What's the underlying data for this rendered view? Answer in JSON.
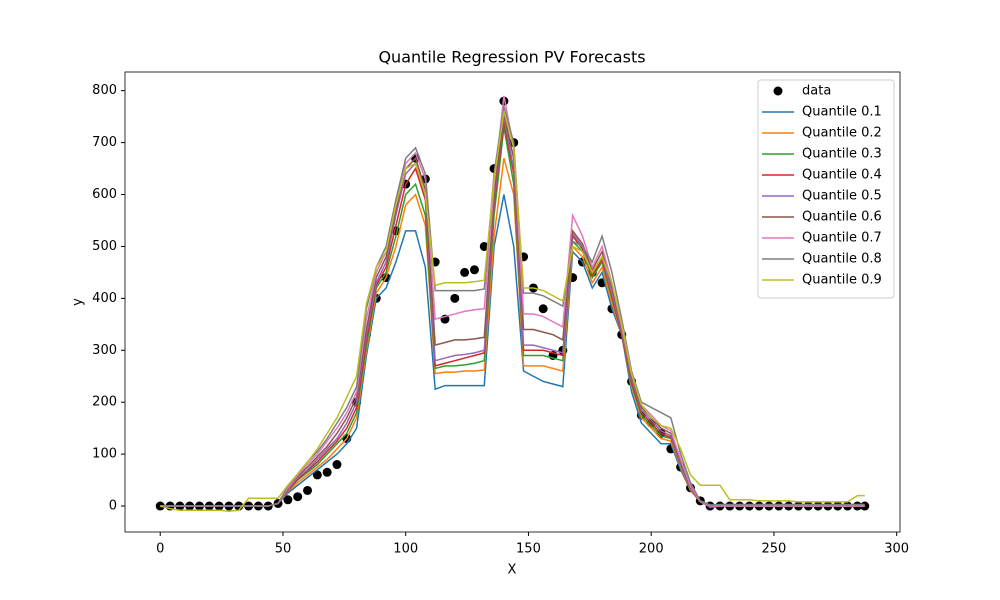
{
  "chart_data": {
    "type": "line",
    "title": "Quantile Regression PV Forecasts",
    "x_label": "X",
    "y_label": "y",
    "x": [
      0,
      4,
      8,
      12,
      16,
      20,
      24,
      28,
      32,
      36,
      40,
      44,
      48,
      52,
      56,
      60,
      64,
      68,
      72,
      76,
      80,
      84,
      88,
      92,
      96,
      100,
      104,
      108,
      112,
      116,
      120,
      124,
      128,
      132,
      136,
      140,
      144,
      148,
      152,
      156,
      160,
      164,
      168,
      172,
      176,
      180,
      184,
      188,
      192,
      196,
      200,
      204,
      208,
      212,
      216,
      220,
      224,
      228,
      232,
      236,
      240,
      244,
      248,
      252,
      256,
      260,
      264,
      268,
      272,
      276,
      280,
      284,
      287
    ],
    "xlim": [
      -14.35,
      301.35
    ],
    "xticks": [
      0,
      50,
      100,
      150,
      200,
      250,
      300
    ],
    "ylim": [
      -50,
      836
    ],
    "yticks": [
      0,
      100,
      200,
      300,
      400,
      500,
      600,
      700,
      800
    ],
    "legend": "upper right",
    "series": [
      {
        "name": "data",
        "type": "scatter",
        "color": "#000000",
        "values": [
          0,
          0,
          0,
          0,
          0,
          0,
          0,
          0,
          0,
          0,
          0,
          0,
          5,
          12,
          18,
          30,
          60,
          65,
          80,
          130,
          200,
          330,
          400,
          440,
          530,
          620,
          670,
          630,
          470,
          360,
          400,
          450,
          455,
          500,
          650,
          780,
          700,
          480,
          420,
          380,
          290,
          300,
          440,
          470,
          450,
          430,
          380,
          330,
          240,
          175,
          160,
          140,
          110,
          75,
          35,
          10,
          0,
          0,
          0,
          0,
          0,
          0,
          0,
          0,
          0,
          0,
          0,
          0,
          0,
          0,
          0,
          0,
          0
        ]
      },
      {
        "name": "Quantile 0.1",
        "type": "line",
        "color": "#1f77b4",
        "values": [
          0,
          0,
          0,
          0,
          0,
          0,
          0,
          0,
          0,
          0,
          0,
          0,
          5,
          25,
          40,
          55,
          70,
          85,
          100,
          120,
          150,
          290,
          400,
          420,
          470,
          530,
          530,
          460,
          225,
          232,
          232,
          232,
          232,
          232,
          500,
          600,
          500,
          260,
          250,
          240,
          235,
          230,
          490,
          470,
          420,
          450,
          380,
          330,
          220,
          160,
          140,
          120,
          120,
          70,
          30,
          10,
          -3,
          0,
          0,
          0,
          0,
          0,
          0,
          0,
          0,
          0,
          0,
          0,
          0,
          0,
          0,
          0,
          0
        ]
      },
      {
        "name": "Quantile 0.2",
        "type": "line",
        "color": "#ff7f0e",
        "values": [
          0,
          0,
          0,
          0,
          0,
          0,
          0,
          0,
          0,
          0,
          0,
          0,
          5,
          28,
          45,
          60,
          75,
          90,
          110,
          130,
          170,
          300,
          410,
          440,
          500,
          580,
          600,
          540,
          255,
          258,
          258,
          260,
          260,
          262,
          520,
          670,
          600,
          270,
          270,
          270,
          265,
          260,
          500,
          480,
          430,
          460,
          390,
          330,
          230,
          170,
          150,
          130,
          125,
          75,
          30,
          8,
          0,
          0,
          0,
          0,
          0,
          0,
          0,
          0,
          0,
          0,
          0,
          0,
          0,
          0,
          0,
          0,
          0
        ]
      },
      {
        "name": "Quantile 0.3",
        "type": "line",
        "color": "#2ca02c",
        "values": [
          0,
          0,
          0,
          0,
          0,
          0,
          0,
          0,
          0,
          0,
          0,
          0,
          5,
          30,
          50,
          65,
          80,
          100,
          120,
          140,
          180,
          310,
          420,
          450,
          520,
          600,
          620,
          560,
          265,
          270,
          270,
          272,
          275,
          280,
          560,
          730,
          620,
          290,
          290,
          290,
          285,
          280,
          510,
          490,
          440,
          470,
          400,
          330,
          235,
          175,
          155,
          135,
          130,
          78,
          32,
          8,
          0,
          0,
          0,
          0,
          0,
          0,
          0,
          0,
          0,
          0,
          0,
          0,
          0,
          0,
          0,
          0,
          0
        ]
      },
      {
        "name": "Quantile 0.4",
        "type": "line",
        "color": "#d62728",
        "values": [
          0,
          0,
          0,
          0,
          0,
          0,
          0,
          0,
          0,
          0,
          0,
          0,
          5,
          30,
          52,
          68,
          85,
          105,
          125,
          150,
          190,
          320,
          425,
          460,
          540,
          620,
          650,
          590,
          270,
          275,
          280,
          285,
          290,
          295,
          580,
          740,
          640,
          300,
          300,
          300,
          295,
          290,
          520,
          495,
          445,
          475,
          405,
          330,
          240,
          180,
          160,
          140,
          132,
          80,
          33,
          8,
          0,
          0,
          0,
          0,
          0,
          0,
          0,
          0,
          0,
          0,
          0,
          0,
          0,
          0,
          0,
          0,
          0
        ]
      },
      {
        "name": "Quantile 0.5",
        "type": "line",
        "color": "#9467bd",
        "values": [
          0,
          0,
          0,
          0,
          0,
          0,
          0,
          0,
          0,
          0,
          0,
          0,
          5,
          32,
          55,
          70,
          90,
          110,
          130,
          160,
          200,
          330,
          430,
          470,
          560,
          640,
          660,
          600,
          280,
          285,
          290,
          292,
          295,
          300,
          590,
          750,
          650,
          310,
          310,
          305,
          300,
          295,
          525,
          500,
          450,
          480,
          410,
          335,
          245,
          185,
          165,
          145,
          135,
          80,
          34,
          8,
          0,
          0,
          0,
          0,
          0,
          0,
          0,
          0,
          0,
          0,
          0,
          0,
          0,
          0,
          0,
          0,
          0
        ]
      },
      {
        "name": "Quantile 0.6",
        "type": "line",
        "color": "#8c564b",
        "values": [
          0,
          0,
          0,
          0,
          0,
          0,
          0,
          0,
          0,
          0,
          0,
          0,
          5,
          35,
          58,
          75,
          95,
          115,
          140,
          170,
          210,
          340,
          440,
          480,
          570,
          650,
          670,
          610,
          310,
          315,
          320,
          320,
          322,
          325,
          600,
          755,
          670,
          340,
          340,
          335,
          330,
          320,
          530,
          505,
          455,
          490,
          420,
          340,
          250,
          190,
          170,
          150,
          140,
          85,
          36,
          8,
          0,
          0,
          0,
          0,
          0,
          0,
          0,
          0,
          0,
          0,
          0,
          0,
          0,
          0,
          0,
          0,
          0
        ]
      },
      {
        "name": "Quantile 0.7",
        "type": "line",
        "color": "#e377c2",
        "values": [
          0,
          0,
          0,
          0,
          0,
          0,
          0,
          0,
          0,
          0,
          0,
          0,
          5,
          35,
          60,
          80,
          100,
          125,
          150,
          180,
          220,
          360,
          450,
          490,
          580,
          660,
          680,
          630,
          360,
          365,
          370,
          375,
          378,
          380,
          620,
          790,
          690,
          370,
          370,
          365,
          355,
          345,
          560,
          520,
          460,
          500,
          430,
          345,
          255,
          195,
          175,
          155,
          145,
          90,
          38,
          9,
          0,
          0,
          0,
          0,
          0,
          0,
          0,
          0,
          0,
          0,
          0,
          0,
          0,
          0,
          0,
          0,
          0
        ]
      },
      {
        "name": "Quantile 0.8",
        "type": "line",
        "color": "#7f7f7f",
        "values": [
          0,
          0,
          0,
          0,
          0,
          0,
          0,
          0,
          0,
          0,
          0,
          0,
          5,
          38,
          62,
          85,
          105,
          130,
          160,
          190,
          230,
          380,
          460,
          500,
          590,
          670,
          690,
          640,
          415,
          415,
          415,
          415,
          415,
          418,
          640,
          770,
          700,
          410,
          410,
          405,
          395,
          385,
          510,
          500,
          470,
          520,
          450,
          360,
          260,
          200,
          190,
          180,
          170,
          100,
          45,
          10,
          2,
          3,
          3,
          3,
          3,
          3,
          3,
          3,
          3,
          3,
          3,
          3,
          3,
          3,
          3,
          3,
          3
        ]
      },
      {
        "name": "Quantile 0.9",
        "type": "line",
        "color": "#bcbd22",
        "values": [
          0,
          -5,
          -8,
          -8,
          -8,
          -8,
          -8,
          -10,
          -8,
          15,
          15,
          15,
          15,
          40,
          62,
          85,
          110,
          140,
          170,
          210,
          250,
          390,
          460,
          490,
          580,
          650,
          660,
          600,
          425,
          430,
          430,
          430,
          432,
          435,
          630,
          760,
          690,
          420,
          420,
          415,
          405,
          395,
          500,
          490,
          450,
          480,
          430,
          350,
          255,
          195,
          170,
          155,
          150,
          110,
          60,
          40,
          40,
          40,
          12,
          12,
          12,
          10,
          10,
          10,
          10,
          8,
          8,
          8,
          8,
          8,
          8,
          20,
          20
        ]
      }
    ]
  }
}
